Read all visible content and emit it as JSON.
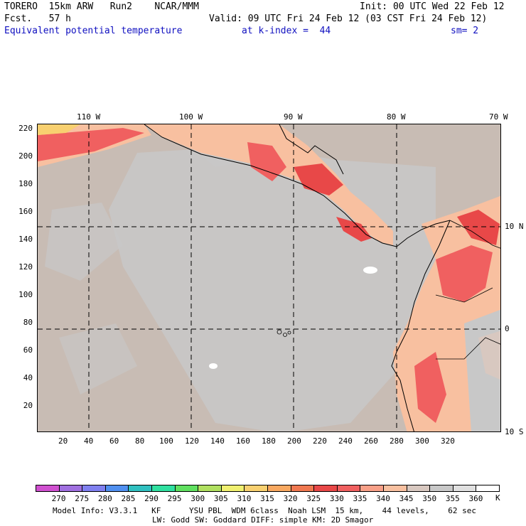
{
  "header": {
    "model": "TORERO  15km ARW   Run2    NCAR/MMM",
    "init": "Init: 00 UTC Wed 22 Feb 12",
    "fcst": "Fcst.   57 h",
    "valid": "Valid: 09 UTC Fri 24 Feb 12 (03 CST Fri 24 Feb 12)",
    "field": "Equivalent potential temperature",
    "level": "at k-index =  44",
    "smooth": "sm= 2"
  },
  "map": {
    "top_labels": [
      "110 W",
      "100 W",
      "90 W",
      "80 W",
      "70 W"
    ],
    "right_labels": [
      "10 N",
      "0",
      "10 S"
    ],
    "y_ticks": [
      "220",
      "200",
      "180",
      "160",
      "140",
      "120",
      "100",
      "80",
      "60",
      "40",
      "20"
    ],
    "x_ticks": [
      "20",
      "40",
      "60",
      "80",
      "100",
      "120",
      "140",
      "160",
      "180",
      "200",
      "220",
      "240",
      "260",
      "280",
      "300",
      "320"
    ]
  },
  "colorbar": {
    "colors": [
      "#d050d0",
      "#a070e0",
      "#8080f0",
      "#5090f0",
      "#30c0c0",
      "#30e0a0",
      "#60e060",
      "#b0e060",
      "#f0f070",
      "#f8d070",
      "#f8a860",
      "#f07850",
      "#e84848",
      "#f06060",
      "#f8a088",
      "#f8c0a0",
      "#d8c8c0",
      "#c8c8c8",
      "#e0e0e0",
      "#ffffff"
    ],
    "labels": [
      "270",
      "275",
      "280",
      "285",
      "290",
      "295",
      "300",
      "305",
      "310",
      "315",
      "320",
      "325",
      "330",
      "335",
      "340",
      "345",
      "350",
      "355",
      "360"
    ],
    "unit": "K"
  },
  "footer": {
    "line1": "Model Info: V3.3.1   KF      YSU PBL  WDM 6class  Noah LSM  15 km,    44 levels,    62 sec",
    "line2": "LW: Godd SW: Goddard DIFF: simple KM: 2D Smagor"
  }
}
